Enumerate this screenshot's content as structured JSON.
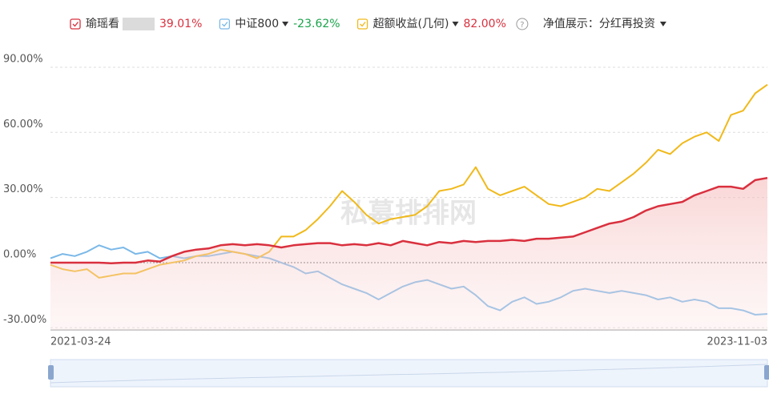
{
  "chart_data": {
    "type": "line",
    "series": [
      {
        "name": "瑜瑶看",
        "color": "#d9303e",
        "legend_value": "39.01%",
        "legend_value_color": "#d9303e",
        "area": true,
        "dropdown": false,
        "values": [
          0,
          0,
          0,
          0,
          0,
          -0.3,
          0,
          0,
          1,
          0.5,
          3,
          5,
          6,
          6.5,
          8,
          8.5,
          8,
          8.5,
          8,
          7,
          8,
          8.5,
          9,
          9,
          8,
          8.5,
          8,
          9,
          8,
          10,
          9,
          8,
          9.5,
          9,
          10,
          9.5,
          10,
          10,
          10.5,
          10,
          11,
          11,
          11.5,
          12,
          14,
          16,
          18,
          19,
          21,
          24,
          26,
          27,
          28,
          31,
          33,
          35,
          35,
          34,
          38,
          39.01
        ]
      },
      {
        "name": "中证800",
        "color": "#7ab8e8",
        "legend_value": "-23.62%",
        "legend_value_color": "#1aa34a",
        "area": false,
        "dropdown": true,
        "values": [
          2,
          4,
          3,
          5,
          8,
          6,
          7,
          4,
          5,
          2,
          3,
          2,
          3,
          3,
          4,
          5,
          4,
          3,
          2,
          0,
          -2,
          -5,
          -4,
          -7,
          -10,
          -12,
          -14,
          -17,
          -14,
          -11,
          -9,
          -8,
          -10,
          -12,
          -11,
          -15,
          -20,
          -22,
          -18,
          -16,
          -19,
          -18,
          -16,
          -13,
          -12,
          -13,
          -14,
          -13,
          -14,
          -15,
          -17,
          -16,
          -18,
          -17,
          -18,
          -21,
          -21,
          -22,
          -24,
          -23.62
        ]
      },
      {
        "name": "超额收益(几何)",
        "color": "#f0b91a",
        "legend_value": "82.00%",
        "legend_value_color": "#d9303e",
        "area": false,
        "dropdown": true,
        "values": [
          -1,
          -3,
          -4,
          -3,
          -7,
          -6,
          -5,
          -5,
          -3,
          -1,
          0,
          1,
          3,
          4,
          6,
          5,
          4,
          2,
          5,
          12,
          12,
          15,
          20,
          26,
          33,
          28,
          22,
          18,
          20,
          21,
          22,
          26,
          33,
          34,
          36,
          44,
          34,
          31,
          33,
          35,
          31,
          27,
          26,
          28,
          30,
          34,
          33,
          37,
          41,
          46,
          52,
          50,
          55,
          58,
          60,
          56,
          68,
          70,
          78,
          82
        ]
      }
    ],
    "categories": [
      "2021-03-24",
      null,
      null,
      null,
      null,
      null,
      null,
      null,
      null,
      null,
      null,
      null,
      null,
      null,
      null,
      null,
      null,
      null,
      null,
      null,
      null,
      null,
      null,
      null,
      null,
      null,
      null,
      null,
      null,
      null,
      null,
      null,
      null,
      null,
      null,
      null,
      null,
      null,
      null,
      null,
      null,
      null,
      null,
      null,
      null,
      null,
      null,
      null,
      null,
      null,
      null,
      null,
      null,
      null,
      null,
      null,
      null,
      null,
      null,
      "2023-11-03"
    ],
    "ylim": [
      -31,
      97
    ],
    "yticks": [
      {
        "value": -30,
        "label": "-30.00%"
      },
      {
        "value": 0,
        "label": "0.00%"
      },
      {
        "value": 30,
        "label": "30.00%"
      },
      {
        "value": 60,
        "label": "60.00%"
      },
      {
        "value": 90,
        "label": "90.00%"
      }
    ],
    "grid": true,
    "display_mode": "净值展示：分红再投资",
    "watermark": "私募排排网"
  }
}
